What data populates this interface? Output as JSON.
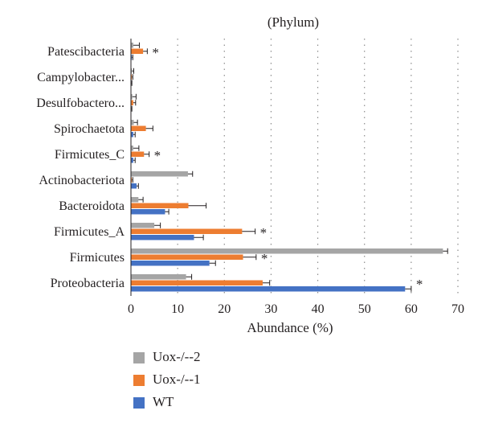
{
  "chart_data": {
    "type": "bar",
    "orientation": "horizontal",
    "title": "(Phylum)",
    "xlabel": "Abundance (%)",
    "ylabel": "",
    "xlim": [
      0,
      70
    ],
    "xticks": [
      "0",
      "10",
      "20",
      "30",
      "40",
      "50",
      "60",
      "70"
    ],
    "grid": "vertical dotted",
    "legend_position": "bottom-left",
    "categories": [
      "Patescibacteria",
      "Campylobacter...",
      "Desulfobactero...",
      "Spirochaetota",
      "Firmicutes_C",
      "Actinobacteriota",
      "Bacteroidota",
      "Firmicutes_A",
      "Firmicutes",
      "Proteobacteria"
    ],
    "series": [
      {
        "name": "Uox-/--2",
        "color": "#a5a5a5",
        "values": [
          0.5,
          0.2,
          0.3,
          0.6,
          0.5,
          12.2,
          1.6,
          5.0,
          66.8,
          11.8
        ],
        "errors": [
          1.3,
          0.4,
          0.8,
          0.8,
          1.2,
          1.0,
          1.0,
          1.3,
          1.0,
          1.2
        ]
      },
      {
        "name": "Uox-/--1",
        "color": "#ed7d31",
        "values": [
          2.6,
          0.2,
          0.5,
          3.2,
          2.8,
          0.2,
          12.3,
          23.8,
          24.0,
          28.2
        ],
        "errors": [
          0.9,
          0.2,
          0.5,
          1.5,
          1.1,
          0.2,
          3.8,
          2.8,
          2.8,
          1.5
        ]
      },
      {
        "name": "WT",
        "color": "#4472c4",
        "values": [
          0.2,
          0.1,
          0.1,
          0.5,
          0.5,
          1.2,
          7.3,
          13.5,
          16.8,
          58.7
        ],
        "errors": [
          0.2,
          0.1,
          0.1,
          0.4,
          0.4,
          0.4,
          0.8,
          2.0,
          1.3,
          1.3
        ]
      }
    ],
    "annotations": [
      {
        "category": "Patescibacteria",
        "text": "*"
      },
      {
        "category": "Firmicutes_C",
        "text": "*"
      },
      {
        "category": "Firmicutes_A",
        "text": "*"
      },
      {
        "category": "Firmicutes",
        "text": "*"
      },
      {
        "category": "Proteobacteria",
        "text": "*"
      }
    ]
  }
}
